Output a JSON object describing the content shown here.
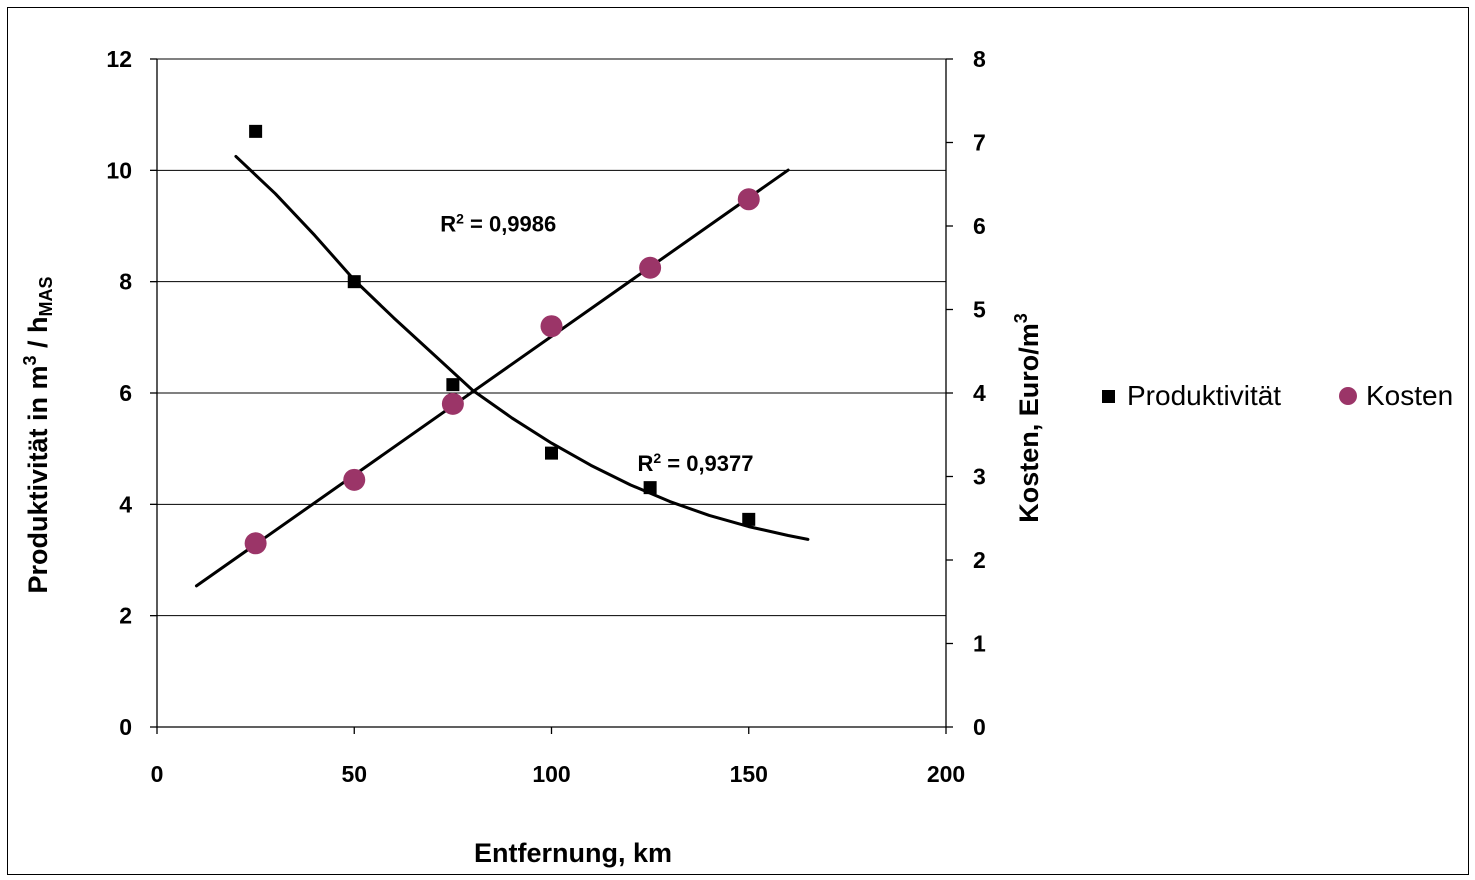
{
  "chart_data": {
    "type": "scatter",
    "title": "",
    "xlabel": "Entfernung, km",
    "ylabel_left": {
      "main": "Produktivität in m",
      "sup": "3",
      "mid": " / h",
      "sub": "MAS"
    },
    "ylabel_right": {
      "main": "Kosten, Euro/m",
      "sup": "3"
    },
    "xlim": [
      0,
      200
    ],
    "ylim_left": [
      0,
      12
    ],
    "ylim_right": [
      0,
      8
    ],
    "x_ticks": [
      "0",
      "50",
      "100",
      "150",
      "200"
    ],
    "y_left_ticks": [
      "0",
      "2",
      "4",
      "6",
      "8",
      "10",
      "12"
    ],
    "y_right_ticks": [
      "0",
      "1",
      "2",
      "3",
      "4",
      "5",
      "6",
      "7",
      "8"
    ],
    "grid": "horizontal",
    "legend_position": "right",
    "series": [
      {
        "name": "Produktivität",
        "axis": "left",
        "marker": "square",
        "color": "#000000",
        "x": [
          25,
          50,
          75,
          100,
          125,
          150
        ],
        "y": [
          10.7,
          8.0,
          6.15,
          4.92,
          4.3,
          3.73
        ]
      },
      {
        "name": "Kosten",
        "axis": "right",
        "marker": "circle",
        "color": "#9b3568",
        "x": [
          25,
          50,
          75,
          100,
          125,
          150
        ],
        "y": [
          2.2,
          2.96,
          3.87,
          4.8,
          5.5,
          6.32
        ]
      }
    ],
    "trendlines": [
      {
        "series": "Produktivität",
        "kind": "curve",
        "x": [
          20,
          30,
          40,
          50,
          60,
          70,
          80,
          90,
          100,
          110,
          120,
          130,
          140,
          150,
          160,
          165
        ],
        "y": [
          10.25,
          9.58,
          8.83,
          8.03,
          7.35,
          6.7,
          6.05,
          5.55,
          5.1,
          4.7,
          4.35,
          4.05,
          3.8,
          3.6,
          3.44,
          3.37
        ]
      },
      {
        "series": "Kosten",
        "kind": "linear",
        "x": [
          10,
          160
        ],
        "y": [
          1.69,
          6.67
        ]
      }
    ],
    "annotations": [
      {
        "label": "R",
        "sup": "2",
        "text": " = 0,9986",
        "x": 86.5,
        "y": 8.9
      },
      {
        "label": "R",
        "sup": "2",
        "text": " = 0,9377",
        "x": 136.5,
        "y": 4.6
      }
    ]
  }
}
